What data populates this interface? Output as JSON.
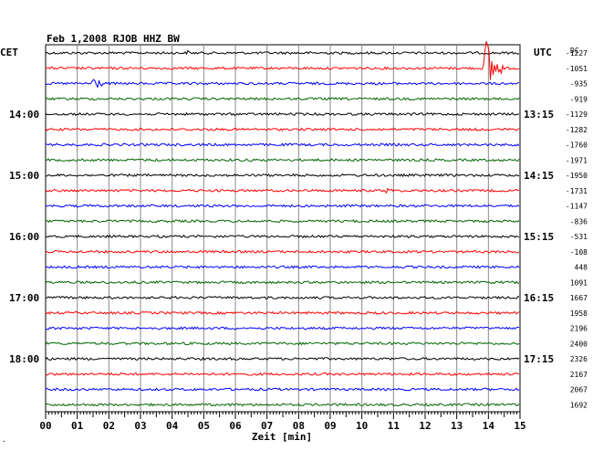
{
  "chart_data": {
    "type": "line",
    "title": "Feb 1,2008   RJOB HHZ BW",
    "left_axis_label": "CET",
    "right_axis_label": "UTC",
    "dc_label": "DC",
    "xlabel": "Zeit [min]",
    "x_ticks": [
      "00",
      "01",
      "02",
      "03",
      "04",
      "05",
      "06",
      "07",
      "08",
      "09",
      "10",
      "11",
      "12",
      "13",
      "14",
      "15"
    ],
    "xlim": [
      0,
      15
    ],
    "left_time_labels": [
      {
        "row": 4,
        "label": "14:00"
      },
      {
        "row": 8,
        "label": "15:00"
      },
      {
        "row": 12,
        "label": "16:00"
      },
      {
        "row": 16,
        "label": "17:00"
      },
      {
        "row": 20,
        "label": "18:00"
      }
    ],
    "right_time_labels": [
      {
        "row": 4,
        "label": "13:15"
      },
      {
        "row": 8,
        "label": "14:15"
      },
      {
        "row": 12,
        "label": "15:15"
      },
      {
        "row": 16,
        "label": "16:15"
      },
      {
        "row": 20,
        "label": "17:15"
      }
    ],
    "row_colors": [
      "#000000",
      "#ff0000",
      "#0000ff",
      "#006400"
    ],
    "dc_offsets": [
      -1227,
      -1051,
      -935,
      -919,
      -1129,
      -1282,
      -1760,
      -1971,
      -1950,
      -1731,
      -1147,
      -836,
      -531,
      -108,
      448,
      1091,
      1667,
      1958,
      2196,
      2400,
      2326,
      2167,
      2067,
      1692
    ],
    "events": [
      {
        "row": 0,
        "minute": 4.5,
        "amplitude": 3,
        "duration": 0.3
      },
      {
        "row": 1,
        "minute": 13.9,
        "amplitude": 40,
        "duration": 0.6
      },
      {
        "row": 2,
        "minute": 1.5,
        "amplitude": 10,
        "duration": 0.5
      },
      {
        "row": 5,
        "minute": 9.2,
        "amplitude": 3,
        "duration": 0.3
      },
      {
        "row": 9,
        "minute": 10.7,
        "amplitude": 4,
        "duration": 0.7
      }
    ],
    "corner_mark": "·",
    "grid": true
  }
}
